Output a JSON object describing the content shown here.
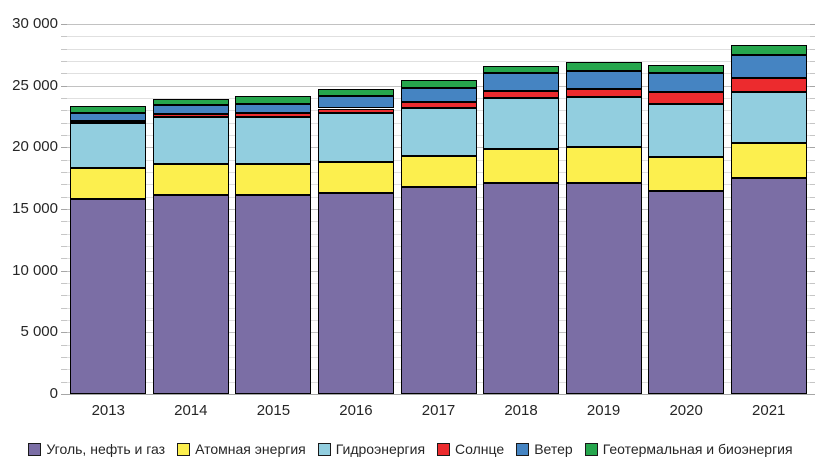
{
  "chart_data": {
    "type": "bar",
    "stacked": true,
    "title": "",
    "xlabel": "",
    "ylabel": "",
    "categories": [
      "2013",
      "2014",
      "2015",
      "2016",
      "2017",
      "2018",
      "2019",
      "2020",
      "2021"
    ],
    "series": [
      {
        "name": "Уголь, нефть и газ",
        "color": "#7b6ea5",
        "values": [
          15850,
          16100,
          16100,
          16300,
          16800,
          17100,
          17100,
          16500,
          17500
        ]
      },
      {
        "name": "Атомная энергия",
        "color": "#fcef4e",
        "values": [
          2500,
          2550,
          2550,
          2550,
          2500,
          2800,
          2900,
          2700,
          2850
        ]
      },
      {
        "name": "Гидроэнергия",
        "color": "#92cedf",
        "values": [
          3650,
          3800,
          3850,
          3900,
          3900,
          4100,
          4100,
          4300,
          4150
        ]
      },
      {
        "name": "Солнце",
        "color": "#ec2b2e",
        "values": [
          150,
          250,
          300,
          400,
          500,
          600,
          650,
          1000,
          1100
        ]
      },
      {
        "name": "Ветер",
        "color": "#4584c2",
        "values": [
          600,
          700,
          700,
          1000,
          1100,
          1400,
          1450,
          1500,
          1900
        ]
      },
      {
        "name": "Геотермальная и биоэнергия",
        "color": "#26a64d",
        "values": [
          600,
          500,
          650,
          550,
          650,
          600,
          700,
          650,
          800
        ]
      }
    ],
    "ylim": [
      0,
      30000
    ],
    "y_major_step": 5000,
    "y_minor_step": 1000,
    "y_tick_labels": [
      "0",
      "5 000",
      "10 000",
      "15 000",
      "20 000",
      "25 000",
      "30 000"
    ],
    "grid": true,
    "legend_position": "bottom"
  }
}
